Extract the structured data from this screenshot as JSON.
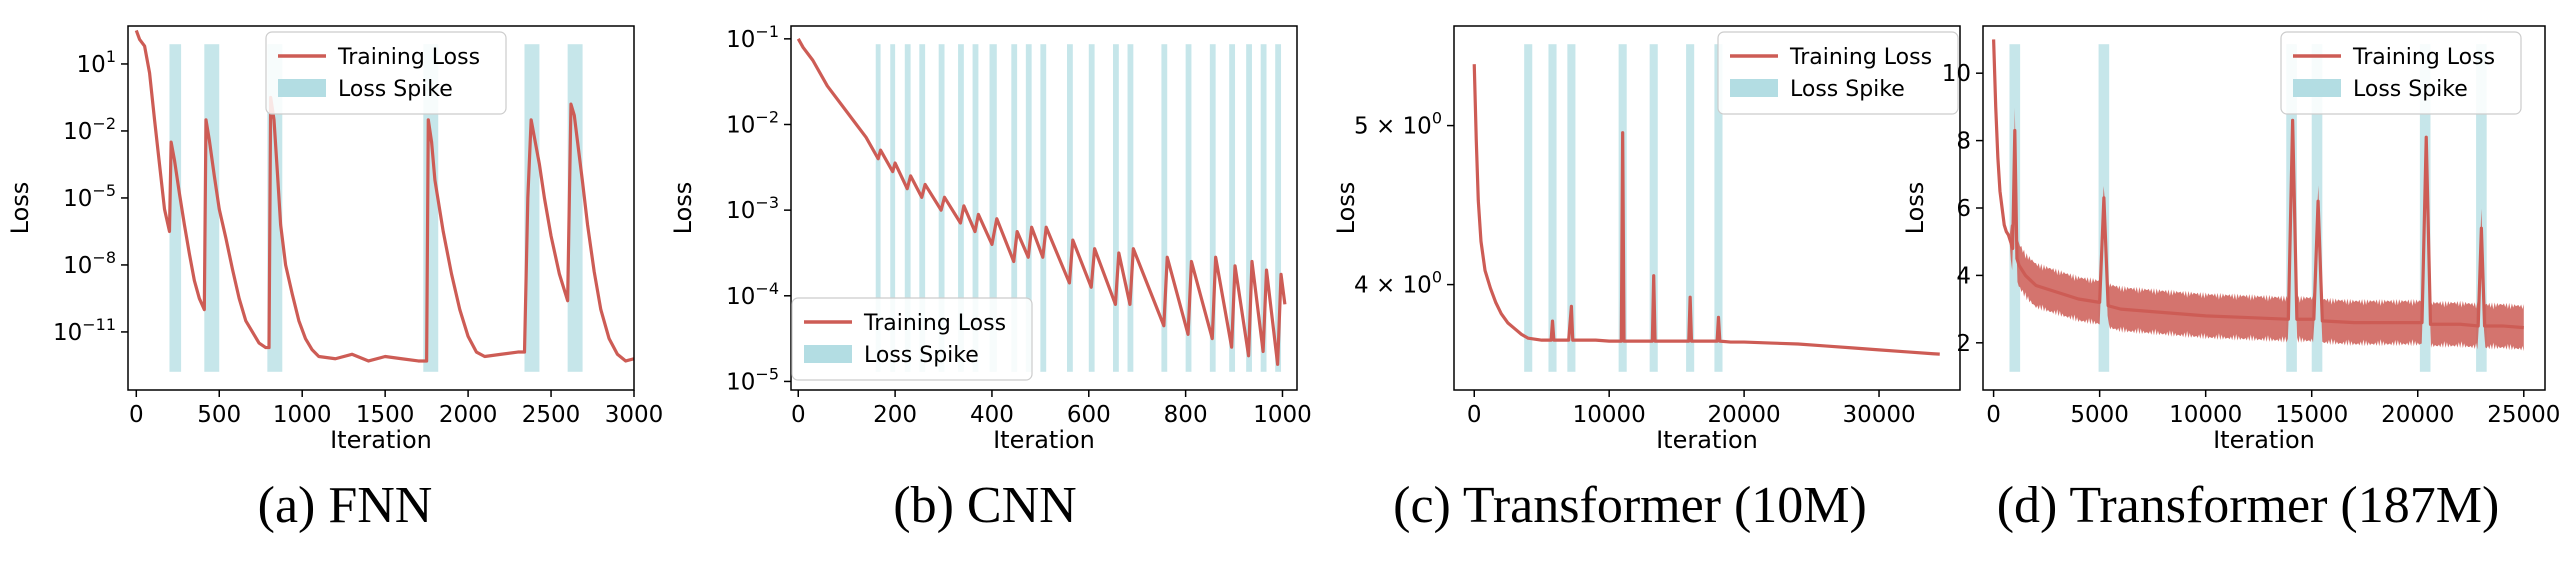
{
  "figure": {
    "colors": {
      "line": "#cd5c55",
      "spike": "#b3dde3",
      "frame": "#000000"
    }
  },
  "chart_data": [
    {
      "type": "line",
      "caption": "(a) FNN",
      "xlabel": "Iteration",
      "ylabel": "Loss",
      "yscale": "log",
      "xlim": [
        -50,
        3000
      ],
      "ylim_exp": [
        -13.6,
        2.7
      ],
      "xticks": [
        0,
        500,
        1000,
        1500,
        2000,
        2500,
        3000
      ],
      "xtick_labels": [
        "0",
        "500",
        "1000",
        "1500",
        "2000",
        "2500",
        "3000"
      ],
      "yticks": [
        1,
        -2,
        -5,
        -8,
        -11
      ],
      "ytick_labels": [
        [
          "10",
          "1"
        ],
        [
          "10",
          "−2"
        ],
        [
          "10",
          "−5"
        ],
        [
          "10",
          "−8"
        ],
        [
          "10",
          "−11"
        ]
      ],
      "legend": {
        "position": "upper center",
        "entries": [
          "Training Loss",
          "Loss Spike"
        ]
      },
      "spike_regions": [
        [
          200,
          270
        ],
        [
          410,
          500
        ],
        [
          790,
          880
        ],
        [
          1730,
          1820
        ],
        [
          2340,
          2430
        ],
        [
          2600,
          2690
        ]
      ],
      "series": [
        {
          "name": "Training Loss",
          "x": [
            0,
            20,
            50,
            80,
            110,
            140,
            170,
            200,
            210,
            230,
            260,
            290,
            320,
            350,
            380,
            410,
            420,
            440,
            470,
            500,
            540,
            580,
            620,
            660,
            700,
            740,
            780,
            800,
            810,
            830,
            850,
            870,
            900,
            940,
            980,
            1020,
            1060,
            1100,
            1200,
            1300,
            1400,
            1500,
            1600,
            1700,
            1750,
            1760,
            1780,
            1800,
            1850,
            1900,
            1950,
            2000,
            2050,
            2100,
            2200,
            2300,
            2340,
            2360,
            2380,
            2400,
            2430,
            2460,
            2500,
            2550,
            2600,
            2620,
            2640,
            2660,
            2690,
            2720,
            2760,
            2800,
            2850,
            2900,
            2950,
            3000
          ],
          "y_log10": [
            2.5,
            2.1,
            1.8,
            0.6,
            -1.5,
            -3.5,
            -5.5,
            -6.5,
            -2.5,
            -3.3,
            -4.8,
            -6.2,
            -7.5,
            -8.7,
            -9.5,
            -10.0,
            -1.5,
            -2.4,
            -4.0,
            -5.5,
            -6.8,
            -8.2,
            -9.5,
            -10.5,
            -11.0,
            -11.5,
            -11.7,
            -11.7,
            -0.5,
            -1.5,
            -3.8,
            -6.2,
            -8.0,
            -9.3,
            -10.5,
            -11.3,
            -11.8,
            -12.1,
            -12.2,
            -12.0,
            -12.3,
            -12.1,
            -12.2,
            -12.3,
            -12.3,
            -1.5,
            -2.5,
            -4.2,
            -6.5,
            -8.4,
            -10.0,
            -11.2,
            -11.9,
            -12.1,
            -12.0,
            -11.9,
            -11.9,
            -5.0,
            -1.5,
            -2.3,
            -3.5,
            -5.0,
            -6.7,
            -8.4,
            -9.6,
            -0.8,
            -1.3,
            -2.5,
            -4.3,
            -6.2,
            -8.3,
            -10.0,
            -11.3,
            -12.0,
            -12.3,
            -12.2
          ]
        }
      ]
    },
    {
      "type": "line",
      "caption": "(b) CNN",
      "xlabel": "Iteration",
      "ylabel": "Loss",
      "yscale": "log",
      "xlim": [
        -15,
        1030
      ],
      "ylim_exp": [
        -5.1,
        -0.85
      ],
      "xticks": [
        0,
        200,
        400,
        600,
        800,
        1000
      ],
      "xtick_labels": [
        "0",
        "200",
        "400",
        "600",
        "800",
        "1000"
      ],
      "yticks": [
        -1,
        -2,
        -3,
        -4,
        -5
      ],
      "ytick_labels": [
        [
          "10",
          "−1"
        ],
        [
          "10",
          "−2"
        ],
        [
          "10",
          "−3"
        ],
        [
          "10",
          "−4"
        ],
        [
          "10",
          "−5"
        ]
      ],
      "legend": {
        "position": "lower left",
        "entries": [
          "Training Loss",
          "Loss Spike"
        ]
      },
      "spike_regions": [
        [
          160,
          170
        ],
        [
          190,
          200
        ],
        [
          220,
          232
        ],
        [
          250,
          262
        ],
        [
          290,
          302
        ],
        [
          330,
          342
        ],
        [
          360,
          372
        ],
        [
          395,
          410
        ],
        [
          440,
          452
        ],
        [
          470,
          482
        ],
        [
          500,
          512
        ],
        [
          555,
          567
        ],
        [
          600,
          612
        ],
        [
          650,
          662
        ],
        [
          680,
          692
        ],
        [
          750,
          762
        ],
        [
          800,
          812
        ],
        [
          850,
          862
        ],
        [
          890,
          902
        ],
        [
          925,
          937
        ],
        [
          955,
          967
        ],
        [
          985,
          997
        ]
      ],
      "series": [
        {
          "name": "Training Loss",
          "x": [
            0,
            10,
            30,
            60,
            100,
            140,
            165,
            170,
            195,
            200,
            225,
            232,
            255,
            262,
            295,
            302,
            335,
            342,
            365,
            372,
            400,
            410,
            445,
            452,
            475,
            482,
            505,
            512,
            560,
            567,
            605,
            612,
            655,
            662,
            685,
            692,
            755,
            762,
            805,
            812,
            855,
            862,
            895,
            902,
            930,
            937,
            960,
            967,
            990,
            997,
            1005
          ],
          "y_log10": [
            -1.0,
            -1.1,
            -1.25,
            -1.55,
            -1.85,
            -2.15,
            -2.4,
            -2.3,
            -2.55,
            -2.45,
            -2.75,
            -2.6,
            -2.85,
            -2.7,
            -3.0,
            -2.85,
            -3.15,
            -2.95,
            -3.25,
            -3.05,
            -3.4,
            -3.1,
            -3.6,
            -3.25,
            -3.55,
            -3.2,
            -3.55,
            -3.2,
            -3.85,
            -3.35,
            -3.9,
            -3.45,
            -4.1,
            -3.5,
            -4.1,
            -3.45,
            -4.35,
            -3.55,
            -4.45,
            -3.6,
            -4.5,
            -3.55,
            -4.6,
            -3.65,
            -4.7,
            -3.6,
            -4.65,
            -3.7,
            -4.8,
            -3.75,
            -4.1
          ]
        }
      ]
    },
    {
      "type": "line",
      "caption": "(c) Transformer (10M)",
      "xlabel": "Iteration",
      "ylabel": "Loss",
      "yscale": "log",
      "xlim": [
        -1500,
        36000
      ],
      "ylim": [
        3.45,
        5.75
      ],
      "xticks": [
        0,
        10000,
        20000,
        30000
      ],
      "xtick_labels": [
        "0",
        "10000",
        "20000",
        "30000"
      ],
      "yticks": [
        5,
        4
      ],
      "ytick_labels": [
        [
          "5 × 10",
          "0"
        ],
        [
          "4 × 10",
          "0"
        ]
      ],
      "legend": {
        "position": "upper right",
        "entries": [
          "Training Loss",
          "Loss Spike"
        ]
      },
      "spike_regions": [
        [
          3700,
          4300
        ],
        [
          5500,
          6100
        ],
        [
          6900,
          7500
        ],
        [
          10700,
          11300
        ],
        [
          13000,
          13600
        ],
        [
          15700,
          16300
        ],
        [
          17800,
          18400
        ]
      ],
      "series": [
        {
          "name": "Training Loss",
          "x": [
            0,
            150,
            300,
            500,
            800,
            1200,
            1600,
            2000,
            2500,
            3000,
            3500,
            4000,
            4500,
            5000,
            5700,
            5800,
            5900,
            6500,
            7000,
            7200,
            7300,
            7400,
            8000,
            9000,
            10000,
            10900,
            11000,
            11100,
            12000,
            13200,
            13300,
            13400,
            14000,
            15000,
            15900,
            16000,
            16100,
            17000,
            18000,
            18100,
            18200,
            19000,
            20000,
            22000,
            24000,
            26000,
            28000,
            30000,
            32000,
            34000,
            34500
          ],
          "y": [
            5.45,
            4.9,
            4.5,
            4.25,
            4.08,
            3.98,
            3.9,
            3.84,
            3.79,
            3.76,
            3.73,
            3.71,
            3.705,
            3.7,
            3.7,
            3.8,
            3.7,
            3.7,
            3.7,
            3.88,
            3.7,
            3.7,
            3.7,
            3.7,
            3.695,
            3.695,
            4.95,
            3.695,
            3.695,
            3.695,
            4.05,
            3.695,
            3.695,
            3.695,
            3.695,
            3.93,
            3.695,
            3.695,
            3.695,
            3.82,
            3.695,
            3.69,
            3.69,
            3.685,
            3.68,
            3.67,
            3.66,
            3.65,
            3.64,
            3.63,
            3.628
          ]
        }
      ]
    },
    {
      "type": "line",
      "caption": "(d) Transformer (187M)",
      "xlabel": "Iteration",
      "ylabel": "Loss",
      "yscale": "linear",
      "xlim": [
        -500,
        26000
      ],
      "ylim": [
        0.6,
        11.4
      ],
      "xticks": [
        0,
        5000,
        10000,
        15000,
        20000,
        25000
      ],
      "xtick_labels": [
        "0",
        "5000",
        "10000",
        "15000",
        "20000",
        "25000"
      ],
      "yticks": [
        2,
        4,
        6,
        8,
        10
      ],
      "ytick_labels": [
        "2",
        "4",
        "6",
        "8",
        "10"
      ],
      "legend": {
        "position": "upper right",
        "entries": [
          "Training Loss",
          "Loss Spike"
        ]
      },
      "spike_regions": [
        [
          750,
          1250
        ],
        [
          4950,
          5450
        ],
        [
          13800,
          14300
        ],
        [
          15000,
          15500
        ],
        [
          20100,
          20600
        ],
        [
          22750,
          23250
        ]
      ],
      "series": [
        {
          "name": "Training Loss",
          "x": [
            0,
            100,
            200,
            300,
            400,
            500,
            600,
            700,
            800,
            900,
            1000,
            1100,
            1200,
            1500,
            2000,
            3000,
            4000,
            5000,
            5200,
            5400,
            6000,
            8000,
            10000,
            12000,
            13900,
            14100,
            14300,
            15100,
            15300,
            15500,
            17000,
            19000,
            20200,
            20400,
            20600,
            22000,
            22850,
            23000,
            23150,
            24000,
            25000
          ],
          "y": [
            11.0,
            9.0,
            7.5,
            6.5,
            6.0,
            5.5,
            5.3,
            5.2,
            5.0,
            4.8,
            8.3,
            4.5,
            4.3,
            4.0,
            3.7,
            3.5,
            3.3,
            3.2,
            6.3,
            3.1,
            3.0,
            2.9,
            2.8,
            2.75,
            2.7,
            8.6,
            2.7,
            2.7,
            6.2,
            2.65,
            2.6,
            2.6,
            2.6,
            8.1,
            2.55,
            2.55,
            2.5,
            5.4,
            2.5,
            2.5,
            2.45
          ],
          "band_half_width": 0.7
        }
      ]
    }
  ]
}
